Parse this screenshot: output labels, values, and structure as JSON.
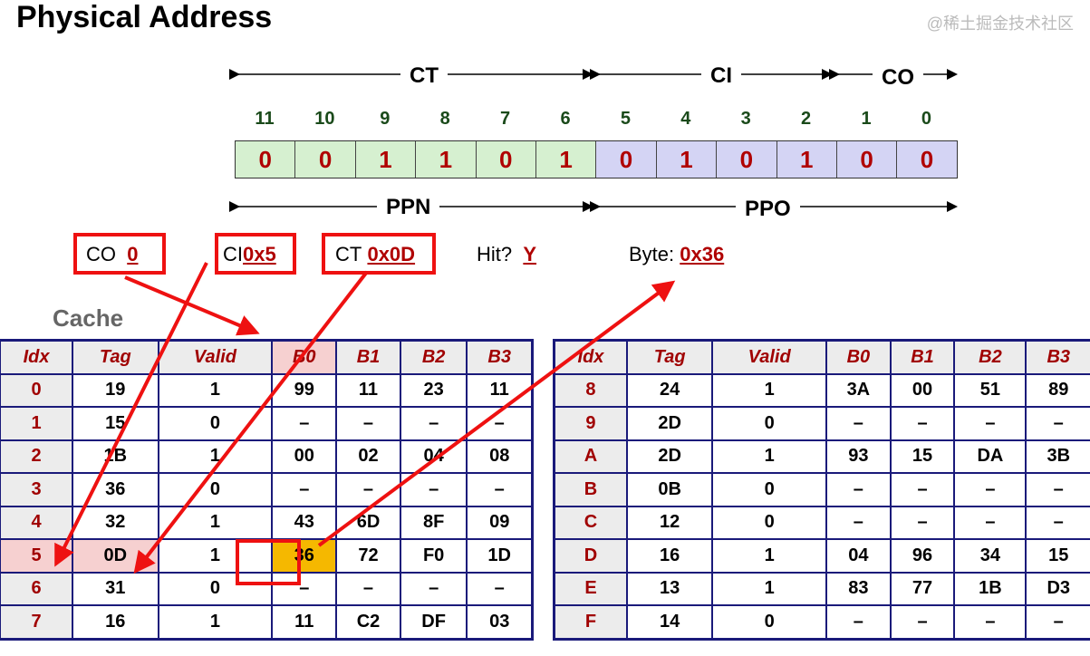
{
  "title": "Physical Address",
  "ranges": {
    "ct": "CT",
    "ci": "CI",
    "co": "CO",
    "ppn": "PPN",
    "ppo": "PPO"
  },
  "bit_numbers": [
    "11",
    "10",
    "9",
    "8",
    "7",
    "6",
    "5",
    "4",
    "3",
    "2",
    "1",
    "0"
  ],
  "bits": [
    "0",
    "0",
    "1",
    "1",
    "0",
    "1",
    "0",
    "1",
    "0",
    "1",
    "0",
    "0"
  ],
  "colors": {
    "ct_fill": "#d6f0d0",
    "ci_co_fill": "#d4d4f4",
    "highlight": "#f5b800",
    "arrow": "#ee1111"
  },
  "fields": {
    "co_label": "CO",
    "co_value": "0",
    "ci_label": "CI",
    "ci_value": "0x5",
    "ct_label": "CT",
    "ct_value": "0x0D",
    "hit_label": "Hit?",
    "hit_value": "Y",
    "byte_label": "Byte:",
    "byte_value": "0x36"
  },
  "cache_label": "Cache",
  "headers": [
    "Idx",
    "Tag",
    "Valid",
    "B0",
    "B1",
    "B2",
    "B3"
  ],
  "left_rows": [
    [
      "0",
      "19",
      "1",
      "99",
      "11",
      "23",
      "11"
    ],
    [
      "1",
      "15",
      "0",
      "–",
      "–",
      "–",
      "–"
    ],
    [
      "2",
      "1B",
      "1",
      "00",
      "02",
      "04",
      "08"
    ],
    [
      "3",
      "36",
      "0",
      "–",
      "–",
      "–",
      "–"
    ],
    [
      "4",
      "32",
      "1",
      "43",
      "6D",
      "8F",
      "09"
    ],
    [
      "5",
      "0D",
      "1",
      "36",
      "72",
      "F0",
      "1D"
    ],
    [
      "6",
      "31",
      "0",
      "–",
      "–",
      "–",
      "–"
    ],
    [
      "7",
      "16",
      "1",
      "11",
      "C2",
      "DF",
      "03"
    ]
  ],
  "right_rows": [
    [
      "8",
      "24",
      "1",
      "3A",
      "00",
      "51",
      "89"
    ],
    [
      "9",
      "2D",
      "0",
      "–",
      "–",
      "–",
      "–"
    ],
    [
      "A",
      "2D",
      "1",
      "93",
      "15",
      "DA",
      "3B"
    ],
    [
      "B",
      "0B",
      "0",
      "–",
      "–",
      "–",
      "–"
    ],
    [
      "C",
      "12",
      "0",
      "–",
      "–",
      "–",
      "–"
    ],
    [
      "D",
      "16",
      "1",
      "04",
      "96",
      "34",
      "15"
    ],
    [
      "E",
      "13",
      "1",
      "83",
      "77",
      "1B",
      "D3"
    ],
    [
      "F",
      "14",
      "0",
      "–",
      "–",
      "–",
      "–"
    ]
  ],
  "watermark": "@稀土掘金技术社区"
}
